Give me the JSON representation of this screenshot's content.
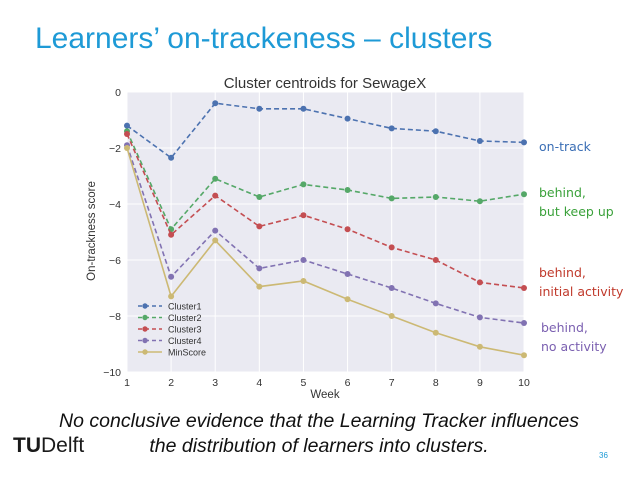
{
  "slide": {
    "title": "Learners’ on-trackeness – clusters",
    "caption_line1": "No conclusive evidence that the Learning Tracker influences",
    "caption_line2": "the distribution of learners into clusters.",
    "logo_bold": "TU",
    "logo_rest": "Delft",
    "page_number": "36"
  },
  "annotations": [
    {
      "lines": [
        "on-track"
      ],
      "color": "#3a6eb5"
    },
    {
      "lines": [
        "behind,",
        "but keep up"
      ],
      "color": "#3aa13a"
    },
    {
      "lines": [
        "behind,",
        "initial activity"
      ],
      "color": "#c0392b"
    },
    {
      "lines": [
        "behind,",
        "no activity"
      ],
      "color": "#7a5fb0"
    }
  ],
  "chart_data": {
    "type": "line",
    "title": "Cluster centroids for SewageX",
    "xlabel": "Week",
    "ylabel": "On-trackness score",
    "x": [
      1,
      2,
      3,
      4,
      5,
      6,
      7,
      8,
      9,
      10
    ],
    "xlim": [
      1,
      10
    ],
    "ylim": [
      -10,
      0
    ],
    "xticks": [
      "1",
      "2",
      "3",
      "4",
      "5",
      "6",
      "7",
      "8",
      "9",
      "10"
    ],
    "yticks": [
      "0",
      "−2",
      "−4",
      "−6",
      "−8",
      "−10"
    ],
    "grid": true,
    "legend_position": "bottom-left",
    "series": [
      {
        "name": "Cluster1",
        "color": "#4c72b0",
        "style": "dashed",
        "values": [
          -1.2,
          -2.35,
          -0.4,
          -0.6,
          -0.6,
          -0.95,
          -1.3,
          -1.4,
          -1.75,
          -1.8
        ]
      },
      {
        "name": "Cluster2",
        "color": "#55a868",
        "style": "dashed",
        "values": [
          -1.4,
          -4.9,
          -3.1,
          -3.75,
          -3.3,
          -3.5,
          -3.8,
          -3.75,
          -3.9,
          -3.65
        ]
      },
      {
        "name": "Cluster3",
        "color": "#c44e52",
        "style": "dashed",
        "values": [
          -1.5,
          -5.1,
          -3.7,
          -4.8,
          -4.4,
          -4.9,
          -5.55,
          -6.0,
          -6.8,
          -7.0
        ]
      },
      {
        "name": "Cluster4",
        "color": "#8172b2",
        "style": "dashed",
        "values": [
          -1.9,
          -6.6,
          -4.95,
          -6.3,
          -6.0,
          -6.5,
          -7.0,
          -7.55,
          -8.05,
          -8.25
        ]
      },
      {
        "name": "MinScore",
        "color": "#ccb974",
        "style": "solid",
        "values": [
          -2.0,
          -7.3,
          -5.3,
          -6.95,
          -6.75,
          -7.4,
          -8.0,
          -8.6,
          -9.1,
          -9.4
        ]
      }
    ]
  }
}
